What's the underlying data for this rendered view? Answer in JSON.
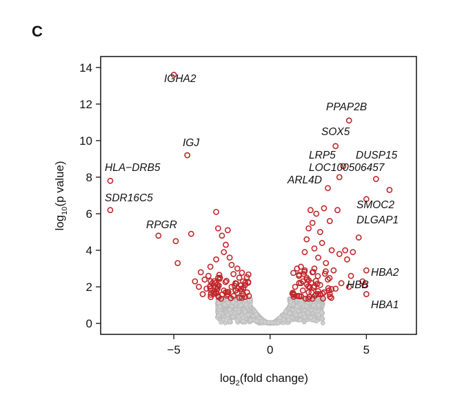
{
  "panel_label": "C",
  "chart_data": {
    "type": "scatter",
    "xlabel_pre": "log",
    "xlabel_sub": "2",
    "xlabel_post": "(fold change)",
    "ylabel_pre": "log",
    "ylabel_sub": "10",
    "ylabel_post": "(p value)",
    "xlim": [
      -8.8,
      7.6
    ],
    "ylim": [
      -0.6,
      14.6
    ],
    "xticks": [
      -5,
      0,
      5
    ],
    "yticks": [
      0,
      2,
      4,
      6,
      8,
      10,
      12,
      14
    ],
    "colors": {
      "significant": "#c0262a",
      "nonsignificant": "#b9b9b9",
      "axis": "#111111"
    },
    "labeled_genes": [
      {
        "name": "IGHA2",
        "x": -5.0,
        "y": 13.6
      },
      {
        "name": "IGJ",
        "x": -4.3,
        "y": 9.2
      },
      {
        "name": "HLA−DRB5",
        "x": -8.3,
        "y": 7.8
      },
      {
        "name": "SDR16C5",
        "x": -8.3,
        "y": 6.2
      },
      {
        "name": "RPGR",
        "x": -5.8,
        "y": 4.8
      },
      {
        "name": "PPAP2B",
        "x": 4.1,
        "y": 11.1
      },
      {
        "name": "SOX5",
        "x": 3.4,
        "y": 9.7
      },
      {
        "name": "LRP5",
        "x": 3.8,
        "y": 8.6
      },
      {
        "name": "DUSP15",
        "x": 5.5,
        "y": 7.9
      },
      {
        "name": "LOC100506457",
        "x": 3.6,
        "y": 8.0
      },
      {
        "name": "ARL4D",
        "x": 3.0,
        "y": 7.4
      },
      {
        "name": "SMOC2",
        "x": 6.2,
        "y": 7.3
      },
      {
        "name": "DLGAP1",
        "x": 5.0,
        "y": 6.8
      },
      {
        "name": "HBA2",
        "x": 5.0,
        "y": 2.9
      },
      {
        "name": "HBB",
        "x": 4.9,
        "y": 2.1
      },
      {
        "name": "HBA1",
        "x": 5.0,
        "y": 1.6
      }
    ],
    "significant_points": [
      [
        -4.9,
        4.5
      ],
      [
        -4.1,
        4.9
      ],
      [
        -4.8,
        3.3
      ],
      [
        -3.9,
        2.3
      ],
      [
        -3.6,
        2.8
      ],
      [
        -3.1,
        3.1
      ],
      [
        -2.8,
        6.1
      ],
      [
        -2.7,
        5.2
      ],
      [
        -2.5,
        4.8
      ],
      [
        -2.3,
        4.3
      ],
      [
        -2.2,
        5.1
      ],
      [
        -2.4,
        3.9
      ],
      [
        -2.1,
        3.6
      ],
      [
        -2.0,
        3.2
      ],
      [
        -1.9,
        2.7
      ],
      [
        -1.8,
        2.2
      ],
      [
        -1.7,
        3.0
      ],
      [
        -1.6,
        2.5
      ],
      [
        -1.5,
        1.9
      ],
      [
        -1.4,
        1.6
      ],
      [
        -1.3,
        2.1
      ],
      [
        -1.2,
        1.7
      ],
      [
        -1.1,
        1.5
      ],
      [
        -2.6,
        2.5
      ],
      [
        -3.0,
        2.2
      ],
      [
        -3.3,
        1.9
      ],
      [
        -2.9,
        1.7
      ],
      [
        -3.5,
        1.6
      ],
      [
        -2.7,
        1.5
      ],
      [
        -2.2,
        1.6
      ],
      [
        -1.9,
        1.5
      ],
      [
        -1.6,
        1.4
      ],
      [
        -1.3,
        1.45
      ],
      [
        -3.7,
        2.0
      ],
      [
        -2.4,
        1.8
      ],
      [
        -2.0,
        2.0
      ],
      [
        -3.2,
        2.6
      ],
      [
        -2.8,
        3.5
      ],
      [
        -3.4,
        2.4
      ],
      [
        -1.8,
        1.8
      ],
      [
        1.2,
        1.6
      ],
      [
        1.3,
        2.0
      ],
      [
        1.4,
        1.5
      ],
      [
        1.5,
        2.6
      ],
      [
        1.6,
        3.1
      ],
      [
        1.7,
        1.8
      ],
      [
        1.8,
        3.9
      ],
      [
        1.9,
        4.6
      ],
      [
        2.0,
        5.2
      ],
      [
        2.1,
        6.2
      ],
      [
        2.2,
        5.5
      ],
      [
        2.3,
        4.1
      ],
      [
        2.4,
        6.0
      ],
      [
        2.5,
        3.6
      ],
      [
        2.6,
        5.0
      ],
      [
        2.7,
        4.4
      ],
      [
        2.8,
        6.3
      ],
      [
        2.9,
        3.3
      ],
      [
        3.0,
        2.4
      ],
      [
        3.1,
        5.6
      ],
      [
        3.2,
        4.0
      ],
      [
        3.3,
        2.9
      ],
      [
        3.5,
        6.2
      ],
      [
        3.6,
        3.8
      ],
      [
        3.7,
        2.2
      ],
      [
        3.9,
        4.0
      ],
      [
        4.0,
        3.5
      ],
      [
        4.2,
        2.6
      ],
      [
        4.3,
        3.9
      ],
      [
        4.6,
        4.7
      ],
      [
        4.8,
        2.3
      ],
      [
        1.5,
        1.5
      ],
      [
        1.7,
        2.3
      ],
      [
        2.0,
        1.7
      ],
      [
        2.2,
        2.8
      ],
      [
        2.4,
        1.6
      ],
      [
        2.6,
        2.1
      ],
      [
        1.9,
        2.5
      ],
      [
        3.4,
        1.9
      ],
      [
        2.8,
        1.7
      ],
      [
        1.4,
        3.0
      ],
      [
        1.6,
        2.2
      ],
      [
        3.1,
        1.6
      ],
      [
        4.1,
        2.0
      ],
      [
        2.3,
        3.0
      ],
      [
        1.8,
        2.9
      ]
    ],
    "nonsignificant_points": {
      "count": 1400,
      "shape": "volcano base, |x| < ~2.6, y < 1.35"
    }
  }
}
